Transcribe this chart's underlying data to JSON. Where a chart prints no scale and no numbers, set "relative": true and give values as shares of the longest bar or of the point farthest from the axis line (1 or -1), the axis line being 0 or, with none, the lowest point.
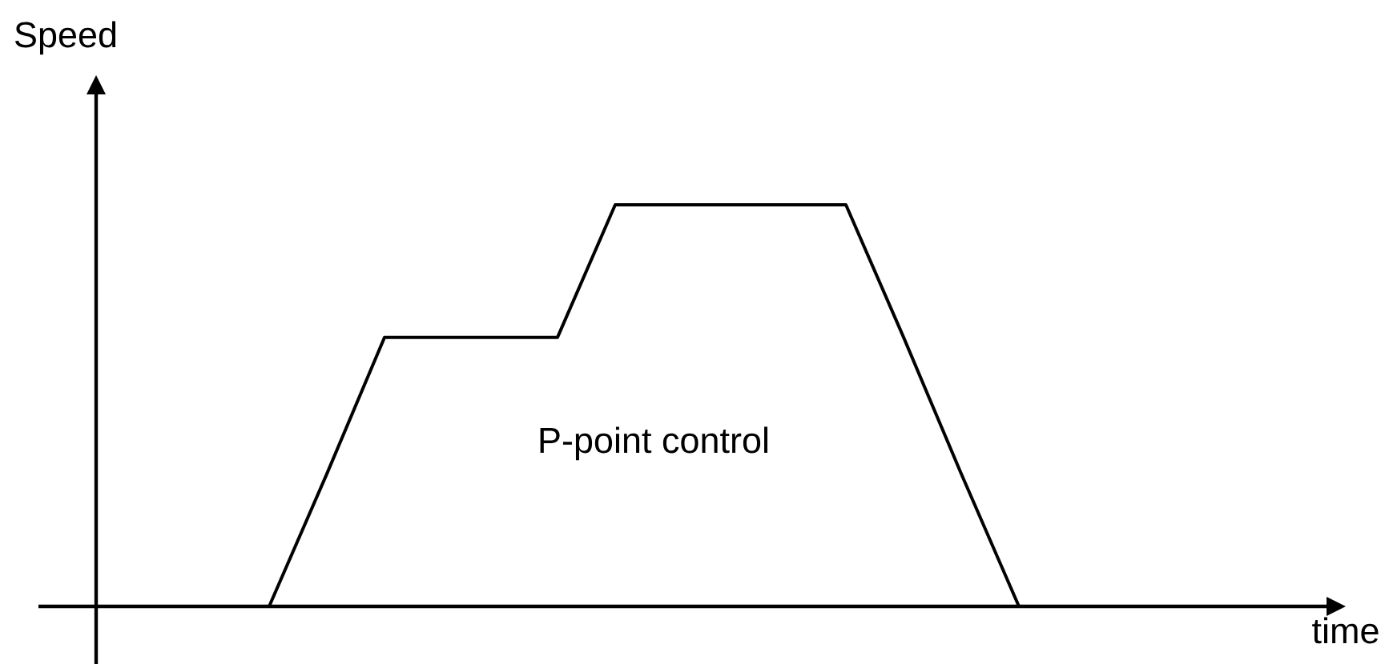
{
  "chart_data": {
    "type": "line",
    "annotations": [
      "Speed",
      "P-point control",
      "time"
    ],
    "categories": [
      null,
      null,
      null,
      null,
      null,
      null,
      null,
      null,
      null,
      null,
      null,
      null,
      null,
      null
    ],
    "series": [
      {
        "color": "#000000",
        "values": [
          0,
          0.33,
          0.67,
          0.67,
          0.67,
          0.67,
          1,
          1,
          1,
          1,
          1,
          0.67,
          0.33,
          0
        ]
      }
    ],
    "relative": true
  }
}
